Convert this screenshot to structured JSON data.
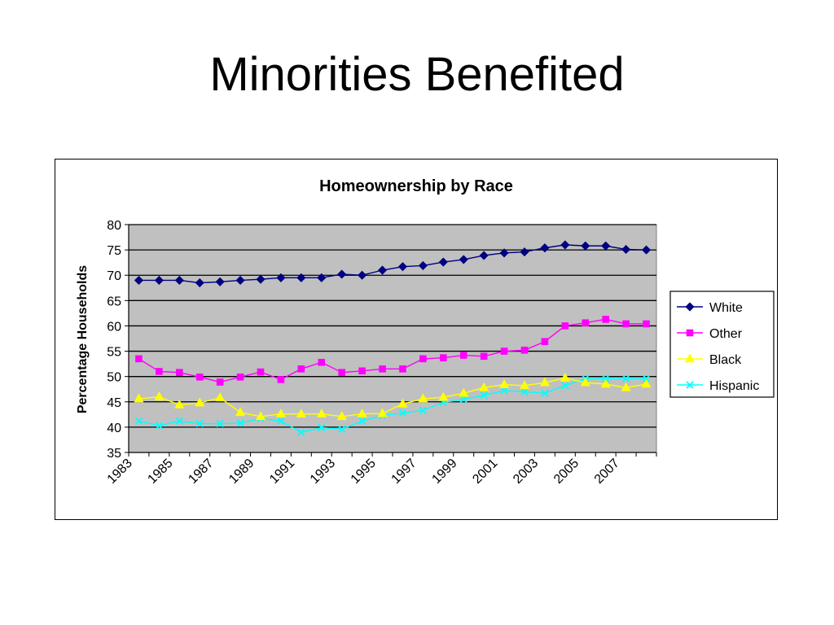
{
  "slide": {
    "title": "Minorities Benefited"
  },
  "chart_data": {
    "type": "line",
    "title": "Homeownership by Race",
    "xlabel": "",
    "ylabel": "Percentage Households",
    "ylim": [
      35,
      80
    ],
    "yticks": [
      35,
      40,
      45,
      50,
      55,
      60,
      65,
      70,
      75,
      80
    ],
    "x": [
      1983,
      1984,
      1985,
      1986,
      1987,
      1988,
      1989,
      1990,
      1991,
      1992,
      1993,
      1994,
      1995,
      1996,
      1997,
      1998,
      1999,
      2000,
      2001,
      2002,
      2003,
      2004,
      2005,
      2006,
      2007,
      2008
    ],
    "xtick_labels": [
      "1983",
      "1985",
      "1987",
      "1989",
      "1991",
      "1993",
      "1995",
      "1997",
      "1999",
      "2001",
      "2003",
      "2005",
      "2007"
    ],
    "grid": true,
    "plot_background": "#c0c0c0",
    "legend_position": "right",
    "series": [
      {
        "name": "White",
        "color": "#000080",
        "marker": "diamond",
        "values": [
          69.0,
          69.0,
          69.0,
          68.5,
          68.7,
          69.0,
          69.2,
          69.5,
          69.5,
          69.5,
          70.2,
          70.0,
          71.0,
          71.7,
          71.9,
          72.6,
          73.1,
          73.9,
          74.4,
          74.6,
          75.4,
          76.0,
          75.8,
          75.8,
          75.1,
          75.0
        ]
      },
      {
        "name": "Other",
        "color": "#ff00ff",
        "marker": "square",
        "values": [
          53.5,
          51.0,
          50.8,
          49.9,
          48.9,
          49.9,
          50.9,
          49.4,
          51.5,
          52.8,
          50.8,
          51.1,
          51.5,
          51.5,
          53.5,
          53.7,
          54.2,
          54.0,
          55.0,
          55.2,
          56.9,
          60.0,
          60.6,
          61.3,
          60.4,
          60.4
        ]
      },
      {
        "name": "Black",
        "color": "#ffff00",
        "marker": "triangle",
        "values": [
          45.6,
          46.0,
          44.4,
          44.8,
          45.8,
          42.9,
          42.1,
          42.6,
          42.6,
          42.6,
          42.1,
          42.6,
          42.7,
          44.6,
          45.6,
          45.9,
          46.7,
          47.8,
          48.4,
          48.2,
          48.8,
          49.7,
          48.8,
          48.5,
          47.8,
          48.5
        ]
      },
      {
        "name": "Hispanic",
        "color": "#00ffff",
        "marker": "x",
        "values": [
          41.2,
          40.3,
          41.2,
          40.7,
          40.7,
          40.8,
          41.7,
          41.2,
          39.0,
          39.9,
          39.6,
          41.2,
          42.3,
          42.8,
          43.3,
          44.9,
          45.5,
          46.3,
          47.2,
          47.0,
          46.7,
          48.2,
          49.6,
          49.6,
          49.6,
          49.6
        ]
      }
    ]
  }
}
